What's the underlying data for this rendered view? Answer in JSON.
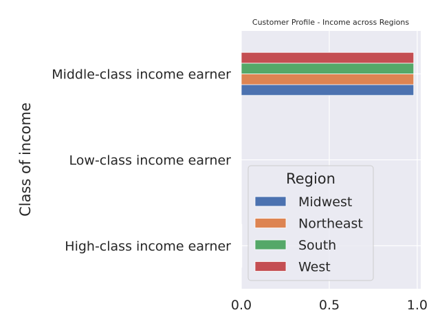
{
  "chart_data": {
    "type": "bar",
    "orientation": "horizontal",
    "title": "Customer Profile - Income across Regions",
    "xlabel": "",
    "ylabel": "Class of income",
    "categories": [
      "High-class income earner",
      "Low-class income earner",
      "Middle-class income earner"
    ],
    "series": [
      {
        "name": "Midwest",
        "color": "#4c72b0",
        "values": [
          0.003,
          0.0,
          0.98
        ]
      },
      {
        "name": "Northeast",
        "color": "#dd8452",
        "values": [
          0.003,
          0.0,
          0.98
        ]
      },
      {
        "name": "South",
        "color": "#55a868",
        "values": [
          0.003,
          0.0,
          0.98
        ]
      },
      {
        "name": "West",
        "color": "#c44e52",
        "values": [
          0.003,
          0.0,
          0.98
        ]
      }
    ],
    "xlim": [
      0,
      1.02
    ],
    "xticks": [
      "0.0",
      "0.5",
      "1.0"
    ],
    "xtick_values": [
      0,
      0.5,
      1.0
    ],
    "grid": true,
    "legend": {
      "title": "Region",
      "placement": "center"
    },
    "background": "#eaeaf2"
  }
}
